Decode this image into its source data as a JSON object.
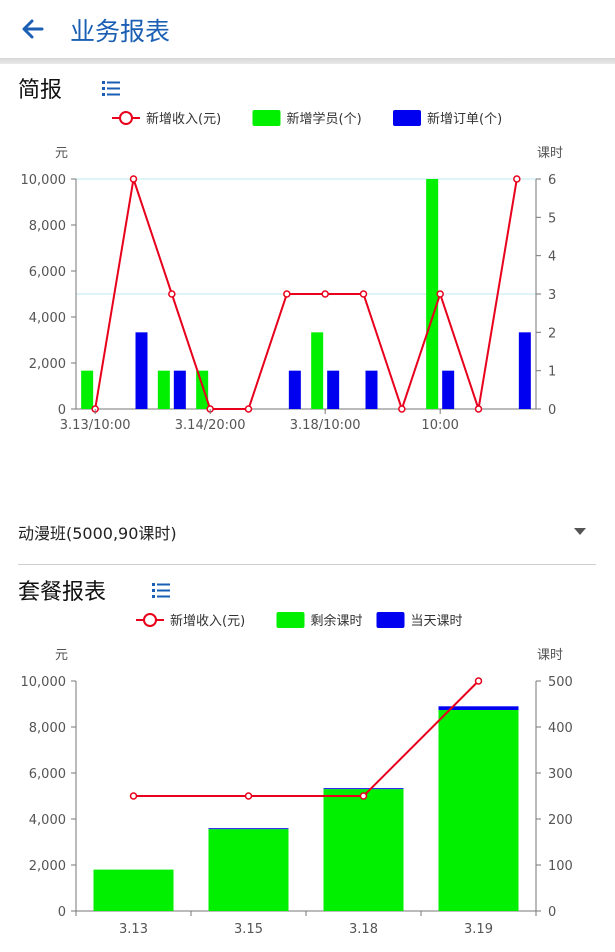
{
  "header": {
    "title": "业务报表"
  },
  "section1": {
    "title": "简报"
  },
  "selector": {
    "value": "动漫班(5000,90课时)"
  },
  "section2": {
    "title": "套餐报表"
  },
  "colors": {
    "accent": "#1a5fb4",
    "line": "#e8001c",
    "bar_green": "#00f000",
    "bar_blue": "#0000f0"
  },
  "chart_data": [
    {
      "type": "bar",
      "legend": [
        "新增收入(元)",
        "新增学员(个)",
        "新增订单(个)"
      ],
      "ylabel": "元",
      "y2label": "课时",
      "ylim": [
        0,
        10000
      ],
      "y2lim": [
        0,
        6
      ],
      "yticks": [
        "0",
        "2,000",
        "4,000",
        "6,000",
        "8,000",
        "10,000"
      ],
      "y2ticks": [
        "0",
        "1",
        "2",
        "3",
        "4",
        "5",
        "6"
      ],
      "xticks": [
        "3.13/10:00",
        "3.14/20:00",
        "3.18/10:00",
        "10:00"
      ],
      "series": [
        {
          "name": "新增收入(元)",
          "type": "line",
          "values": [
            0,
            6,
            3,
            0,
            0,
            3,
            3,
            3,
            0,
            3,
            0,
            6
          ]
        },
        {
          "name": "新增学员(个)",
          "type": "bar",
          "values": [
            1,
            0,
            1,
            1,
            0,
            0,
            2,
            0,
            0,
            6,
            0,
            0
          ]
        },
        {
          "name": "新增订单(个)",
          "type": "bar",
          "values": [
            0,
            2,
            1,
            0,
            0,
            1,
            1,
            1,
            0,
            1,
            0,
            2
          ]
        }
      ]
    },
    {
      "type": "bar",
      "legend": [
        "新增收入(元)",
        "剩余课时",
        "当天课时"
      ],
      "ylabel": "元",
      "y2label": "课时",
      "ylim": [
        0,
        10000
      ],
      "y2lim": [
        0,
        500
      ],
      "yticks": [
        "0",
        "2,000",
        "4,000",
        "6,000",
        "8,000",
        "10,000"
      ],
      "y2ticks": [
        "0",
        "100",
        "200",
        "300",
        "400",
        "500"
      ],
      "categories": [
        "3.13",
        "3.15",
        "3.18",
        "3.19"
      ],
      "series": [
        {
          "name": "新增收入(元)",
          "type": "line",
          "values": [
            250,
            250,
            250,
            500
          ]
        },
        {
          "name": "剩余课时",
          "type": "bar",
          "values": [
            90,
            178,
            265,
            437
          ]
        },
        {
          "name": "当天课时",
          "type": "bar",
          "values": [
            0,
            2,
            2,
            8
          ]
        }
      ]
    }
  ]
}
